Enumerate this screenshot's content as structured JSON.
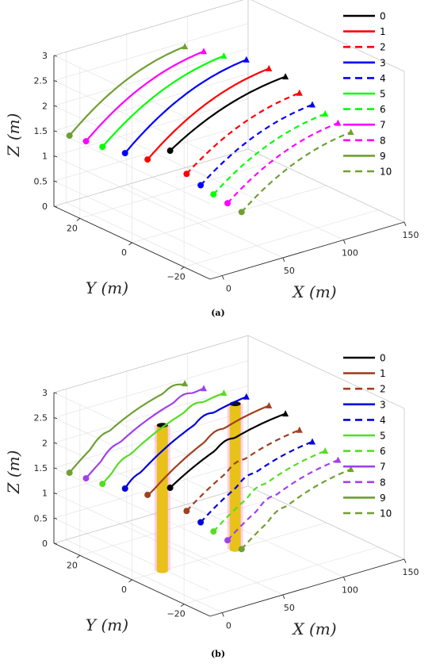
{
  "chart_data": [
    {
      "id": "a",
      "type": "line",
      "caption": "(a)",
      "xlabel": "X (m)",
      "ylabel": "Y (m)",
      "zlabel": "Z (m)",
      "x_ticks": [
        "0",
        "50",
        "100",
        "150"
      ],
      "y_ticks": [
        "20",
        "0",
        "−20"
      ],
      "z_ticks": [
        "0",
        "0.5",
        "1",
        "1.5",
        "2",
        "2.5",
        "3"
      ],
      "xlim": [
        -10,
        150
      ],
      "ylim": [
        -30,
        30
      ],
      "zlim": [
        0,
        3
      ],
      "legend_position": "top-right",
      "series": [
        {
          "name": "0",
          "color": "#000000",
          "dash": "solid",
          "start": [
            30,
            4,
            1.45
          ],
          "end": [
            125,
            4,
            2.25
          ]
        },
        {
          "name": "1",
          "color": "#ff0000",
          "dash": "solid",
          "start": [
            20,
            8,
            1.25
          ],
          "end": [
            120,
            8,
            2.35
          ]
        },
        {
          "name": "2",
          "color": "#ff0000",
          "dash": "dashed",
          "start": [
            35,
            0,
            1.05
          ],
          "end": [
            128,
            0,
            2.0
          ]
        },
        {
          "name": "3",
          "color": "#0000ff",
          "dash": "solid",
          "start": [
            10,
            12,
            1.35
          ],
          "end": [
            110,
            12,
            2.5
          ]
        },
        {
          "name": "4",
          "color": "#0000ff",
          "dash": "dashed",
          "start": [
            38,
            -4,
            0.9
          ],
          "end": [
            130,
            -4,
            1.85
          ]
        },
        {
          "name": "5",
          "color": "#00ff00",
          "dash": "solid",
          "start": [
            0,
            16,
            1.45
          ],
          "end": [
            100,
            16,
            2.55
          ]
        },
        {
          "name": "6",
          "color": "#00ff00",
          "dash": "dashed",
          "start": [
            40,
            -8,
            0.8
          ],
          "end": [
            132,
            -8,
            1.75
          ]
        },
        {
          "name": "7",
          "color": "#ff00ff",
          "dash": "solid",
          "start": [
            -5,
            20,
            1.5
          ],
          "end": [
            92,
            20,
            2.6
          ]
        },
        {
          "name": "8",
          "color": "#ff00ff",
          "dash": "dashed",
          "start": [
            43,
            -12,
            0.7
          ],
          "end": [
            134,
            -12,
            1.65
          ]
        },
        {
          "name": "9",
          "color": "#6fa032",
          "dash": "solid",
          "start": [
            -10,
            24,
            1.55
          ],
          "end": [
            85,
            24,
            2.65
          ]
        },
        {
          "name": "10",
          "color": "#6fa032",
          "dash": "dashed",
          "start": [
            46,
            -16,
            0.6
          ],
          "end": [
            136,
            -16,
            1.55
          ]
        }
      ]
    },
    {
      "id": "b",
      "type": "line",
      "caption": "(b)",
      "xlabel": "X (m)",
      "ylabel": "Y (m)",
      "zlabel": "Z (m)",
      "x_ticks": [
        "0",
        "50",
        "100",
        "150"
      ],
      "y_ticks": [
        "20",
        "0",
        "−20"
      ],
      "z_ticks": [
        "0",
        "0.5",
        "1",
        "1.5",
        "2",
        "2.5",
        "3"
      ],
      "xlim": [
        -10,
        150
      ],
      "ylim": [
        -30,
        30
      ],
      "zlim": [
        0,
        3
      ],
      "legend_position": "top-right",
      "obstacles": [
        {
          "color": "#e8c21a",
          "halo": "#ff9ad6",
          "x": 15,
          "y": 0
        },
        {
          "color": "#e8c21a",
          "halo": "#ff9ad6",
          "x": 75,
          "y": 0
        }
      ],
      "series": [
        {
          "name": "0",
          "color": "#000000",
          "dash": "solid",
          "start": [
            30,
            4,
            1.45
          ],
          "end": [
            125,
            4,
            2.25
          ]
        },
        {
          "name": "1",
          "color": "#a0401e",
          "dash": "solid",
          "start": [
            20,
            8,
            1.25
          ],
          "end": [
            120,
            8,
            2.35
          ]
        },
        {
          "name": "2",
          "color": "#a0401e",
          "dash": "dashed",
          "start": [
            35,
            0,
            1.05
          ],
          "end": [
            128,
            0,
            2.0
          ]
        },
        {
          "name": "3",
          "color": "#0000dd",
          "dash": "solid",
          "start": [
            10,
            12,
            1.35
          ],
          "end": [
            110,
            12,
            2.5
          ]
        },
        {
          "name": "4",
          "color": "#0000dd",
          "dash": "dashed",
          "start": [
            38,
            -4,
            0.9
          ],
          "end": [
            130,
            -4,
            1.85
          ]
        },
        {
          "name": "5",
          "color": "#55dd22",
          "dash": "solid",
          "start": [
            0,
            16,
            1.45
          ],
          "end": [
            100,
            16,
            2.55
          ]
        },
        {
          "name": "6",
          "color": "#55dd22",
          "dash": "dashed",
          "start": [
            40,
            -8,
            0.8
          ],
          "end": [
            132,
            -8,
            1.75
          ]
        },
        {
          "name": "7",
          "color": "#a040ee",
          "dash": "solid",
          "start": [
            -5,
            20,
            1.5
          ],
          "end": [
            92,
            20,
            2.6
          ]
        },
        {
          "name": "8",
          "color": "#a040ee",
          "dash": "dashed",
          "start": [
            43,
            -12,
            0.7
          ],
          "end": [
            134,
            -12,
            1.65
          ]
        },
        {
          "name": "9",
          "color": "#6fa032",
          "dash": "solid",
          "start": [
            -10,
            24,
            1.55
          ],
          "end": [
            85,
            24,
            2.65
          ]
        },
        {
          "name": "10",
          "color": "#6fa032",
          "dash": "dashed",
          "start": [
            46,
            -16,
            0.6
          ],
          "end": [
            136,
            -16,
            1.55
          ]
        }
      ]
    }
  ]
}
